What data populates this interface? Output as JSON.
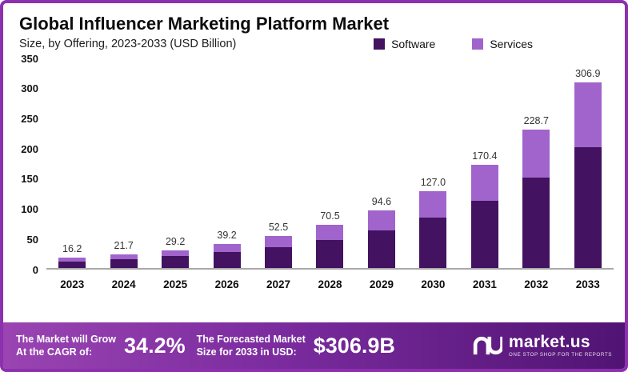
{
  "header": {
    "title": "Global Influencer Marketing Platform Market",
    "subtitle": "Size, by Offering, 2023-2033 (USD Billion)"
  },
  "legend": [
    {
      "label": "Software",
      "color": "#431260"
    },
    {
      "label": "Services",
      "color": "#a164cc"
    }
  ],
  "chart_data": {
    "type": "bar",
    "stacked": true,
    "title": "Global Influencer Marketing Platform Market",
    "subtitle": "Size, by Offering, 2023-2033 (USD Billion)",
    "categories": [
      "2023",
      "2024",
      "2025",
      "2026",
      "2027",
      "2028",
      "2029",
      "2030",
      "2031",
      "2032",
      "2033"
    ],
    "series": [
      {
        "name": "Software",
        "color": "#431260",
        "values": [
          10.5,
          14.1,
          19.0,
          25.5,
          34.1,
          45.8,
          61.5,
          82.5,
          110.8,
          148.7,
          199.5
        ]
      },
      {
        "name": "Services",
        "color": "#a164cc",
        "values": [
          5.7,
          7.6,
          10.2,
          13.7,
          18.4,
          24.7,
          33.1,
          44.5,
          59.6,
          80.0,
          107.4
        ]
      }
    ],
    "totals": [
      16.2,
      21.7,
      29.2,
      39.2,
      52.5,
      70.5,
      94.6,
      127.0,
      170.4,
      228.7,
      306.9
    ],
    "xlabel": "",
    "ylabel": "",
    "ylim": [
      0,
      350
    ],
    "yticks": [
      0,
      50,
      100,
      150,
      200,
      250,
      300,
      350
    ],
    "grid": false,
    "legend_position": "top"
  },
  "footer": {
    "cagr_label_line1": "The Market will Grow",
    "cagr_label_line2": "At the CAGR of:",
    "cagr_value": "34.2%",
    "forecast_label_line1": "The Forecasted Market",
    "forecast_label_line2": "Size for 2033 in USD:",
    "forecast_value": "$306.9B",
    "brand": "market.us",
    "brand_tagline": "ONE STOP SHOP FOR THE REPORTS"
  }
}
